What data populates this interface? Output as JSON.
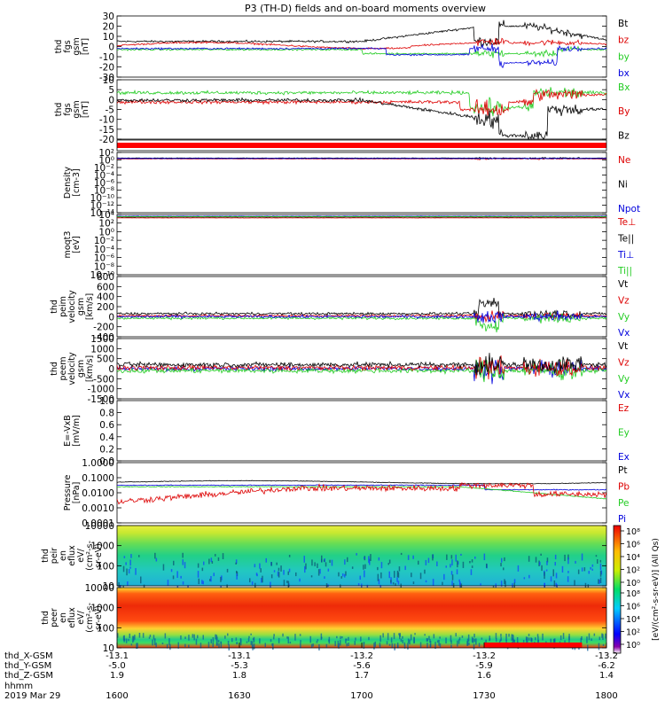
{
  "chart_data": {
    "type": "line",
    "title": "P3 (TH-D) fields and on-board moments overview",
    "date": "2019 Mar 29",
    "x_label": "hhmm",
    "x_ticks": [
      "1600",
      "1630",
      "1700",
      "1730",
      "1800"
    ],
    "ephemeris": [
      {
        "label": "thd_X-GSM",
        "values": [
          "-13.1",
          "-13.1",
          "-13.2",
          "-13.2",
          "-13.2"
        ]
      },
      {
        "label": "thd_Y-GSM",
        "values": [
          "-5.0",
          "-5.3",
          "-5.6",
          "-5.9",
          "-6.2"
        ]
      },
      {
        "label": "thd_Z-GSM",
        "values": [
          "1.9",
          "1.8",
          "1.7",
          "1.6",
          "1.4"
        ]
      }
    ],
    "panels": [
      {
        "ylabel": [
          "thd",
          "fgs",
          "gsm",
          "[nT]"
        ],
        "yticks": [
          "30",
          "20",
          "10",
          "0",
          "-10",
          "-20",
          "-30"
        ],
        "ylim": [
          -30,
          30
        ],
        "legend": [
          {
            "name": "Bt",
            "color": "#000000"
          },
          {
            "name": "bz",
            "color": "#dd0000"
          },
          {
            "name": "by",
            "color": "#22cc22"
          },
          {
            "name": "bx",
            "color": "#0000dd"
          }
        ]
      },
      {
        "ylabel": [
          "thd",
          "fgs",
          "gsm",
          "[nT]"
        ],
        "yticks": [
          "10",
          "5",
          "0",
          "-5",
          "-10",
          "-15",
          "-20"
        ],
        "ylim": [
          -22,
          10
        ],
        "legend": [
          {
            "name": "Bx",
            "color": "#22cc22"
          },
          {
            "name": "By",
            "color": "#dd0000"
          },
          {
            "name": "Bz",
            "color": "#000000"
          }
        ]
      },
      {
        "ylabel": [
          "Density",
          "[cm-3]"
        ],
        "yticks": [
          "10²",
          "10⁰",
          "10⁻²",
          "10⁻⁴",
          "10⁻⁶",
          "10⁻⁸",
          "10⁻¹⁰",
          "10⁻¹²",
          "10⁻¹⁴"
        ],
        "ylim": [
          -14,
          2
        ],
        "log": true,
        "legend": [
          {
            "name": "Ne",
            "color": "#dd0000"
          },
          {
            "name": "Ni",
            "color": "#000000"
          },
          {
            "name": "Npot",
            "color": "#0000dd"
          }
        ]
      },
      {
        "ylabel": [
          "moqt3",
          "[eV]"
        ],
        "yticks": [
          "10⁴",
          "10²",
          "10⁰",
          "10⁻²",
          "10⁻⁴",
          "10⁻⁶",
          "10⁻⁸",
          "10⁻¹⁰"
        ],
        "ylim": [
          -10,
          4
        ],
        "log": true,
        "legend": [
          {
            "name": "Te⊥",
            "color": "#dd0000"
          },
          {
            "name": "Te||",
            "color": "#000000"
          },
          {
            "name": "Ti⊥",
            "color": "#0000dd"
          },
          {
            "name": "Ti||",
            "color": "#22cc22"
          }
        ]
      },
      {
        "ylabel": [
          "thd",
          "peim",
          "velocity",
          "gsm",
          "[km/s]"
        ],
        "yticks": [
          "800",
          "600",
          "400",
          "200",
          "0",
          "-200",
          "-400"
        ],
        "ylim": [
          -400,
          800
        ],
        "legend": [
          {
            "name": "Vt",
            "color": "#000000"
          },
          {
            "name": "Vz",
            "color": "#dd0000"
          },
          {
            "name": "Vy",
            "color": "#22cc22"
          },
          {
            "name": "Vx",
            "color": "#0000dd"
          }
        ]
      },
      {
        "ylabel": [
          "thd",
          "peem",
          "velocity",
          "gsm",
          "[km/s]"
        ],
        "yticks": [
          "1500",
          "1000",
          "500",
          "0",
          "-500",
          "-1000",
          "-1500"
        ],
        "ylim": [
          -1500,
          1500
        ],
        "legend": [
          {
            "name": "Vt",
            "color": "#000000"
          },
          {
            "name": "Vz",
            "color": "#dd0000"
          },
          {
            "name": "Vy",
            "color": "#22cc22"
          },
          {
            "name": "Vx",
            "color": "#0000dd"
          }
        ]
      },
      {
        "ylabel": [
          "E=-VxB",
          "[mV/m]"
        ],
        "yticks": [
          "1.0",
          "0.8",
          "0.6",
          "0.4",
          "0.2",
          "0.0"
        ],
        "ylim": [
          0,
          1
        ],
        "legend": [
          {
            "name": "Ez",
            "color": "#dd0000"
          },
          {
            "name": "Ey",
            "color": "#22cc22"
          },
          {
            "name": "Ex",
            "color": "#0000dd"
          }
        ]
      },
      {
        "ylabel": [
          "Pressure",
          "[nPa]"
        ],
        "yticks": [
          "1.0000",
          "0.1000",
          "0.0100",
          "0.0010",
          "0.0001"
        ],
        "ylim": [
          -4,
          0
        ],
        "log": true,
        "legend": [
          {
            "name": "Pt",
            "color": "#000000"
          },
          {
            "name": "Pb",
            "color": "#dd0000"
          },
          {
            "name": "Pe",
            "color": "#22cc22"
          },
          {
            "name": "Pi",
            "color": "#0000dd"
          }
        ]
      },
      {
        "ylabel": [
          "thd",
          "peir",
          "en",
          "eflux",
          "eV/",
          "(cm²-s-",
          "sr-eV)"
        ],
        "yticks": [
          "10000",
          "1000",
          "100",
          "10"
        ],
        "ylim": [
          1,
          4
        ],
        "log": true,
        "spectrogram": true,
        "colorbar_ticks": [
          "10⁸",
          "10⁶",
          "10⁴",
          "10²",
          "10⁰"
        ]
      },
      {
        "ylabel": [
          "thd",
          "peer",
          "en",
          "eflux",
          "eV/",
          "(cm²-s-",
          "sr-eV)"
        ],
        "yticks": [
          "10000",
          "1000",
          "100",
          "10"
        ],
        "ylim": [
          1,
          4
        ],
        "log": true,
        "spectrogram": true,
        "colorbar_ticks": [
          "10⁸",
          "10⁶",
          "10⁴",
          "10²",
          "10⁰"
        ]
      }
    ],
    "colorbar_label": "[eV/(cm²-s-sr-eV)] (All Qs)"
  }
}
